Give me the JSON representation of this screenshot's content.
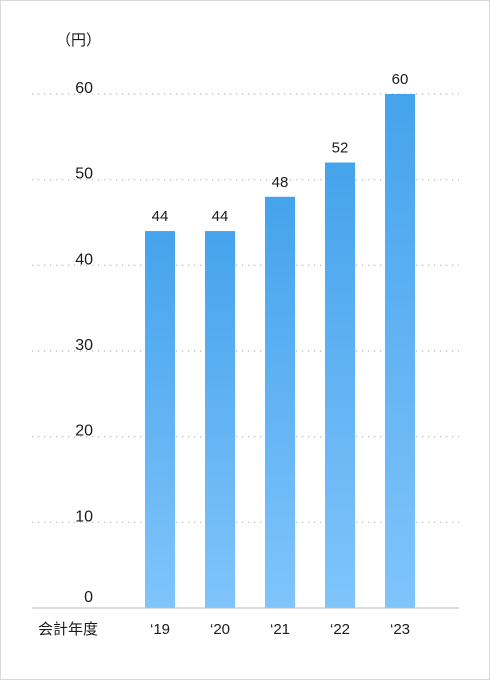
{
  "chart_data": {
    "type": "bar",
    "unit_label": "（円）",
    "xlabel": "会計年度",
    "categories": [
      "‘19",
      "‘20",
      "‘21",
      "‘22",
      "‘23"
    ],
    "values": [
      44,
      44,
      48,
      52,
      60
    ],
    "value_labels": [
      "44",
      "44",
      "48",
      "52",
      "60"
    ],
    "yticks": [
      0,
      10,
      20,
      30,
      40,
      50,
      60
    ],
    "ylim": [
      0,
      60
    ],
    "grid": true,
    "colors": {
      "bar_top": "#45a3ec",
      "bar_bottom": "#80c4fb",
      "grid": "#b5b5b5",
      "axis": "#bbbbbb"
    }
  }
}
